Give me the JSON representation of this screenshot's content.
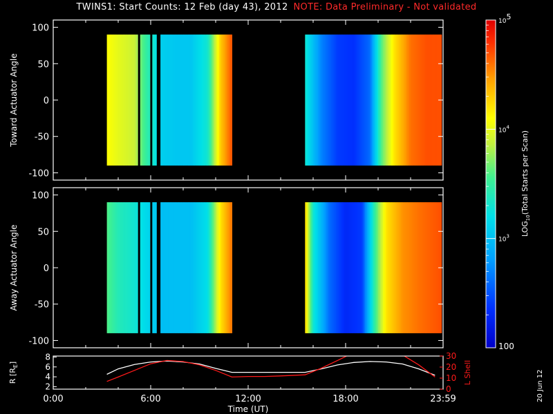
{
  "title": "TWINS1: Start Counts: 12 Feb (day  43), 2012",
  "note": "NOTE: Data Preliminary - Not validated",
  "date_stamp": "20 Jun 12",
  "colors": {
    "background": "#000000",
    "axes": "#ffffff",
    "note": "#ff2a2a",
    "r_line": "#ffffff",
    "lshell_line": "#ff1a1a"
  },
  "chart_data": [
    {
      "type": "heatmap",
      "name": "toward",
      "ylabel": "Toward Actuator Angle",
      "ylim": [
        -110,
        110
      ],
      "yticks": [
        100,
        50,
        0,
        -50,
        -100
      ],
      "xlim": [
        0,
        24
      ],
      "angle_range": [
        -90,
        90
      ],
      "data_blocks": [
        [
          3.3,
          5.2
        ],
        [
          5.35,
          5.95
        ],
        [
          6.1,
          6.35
        ],
        [
          6.6,
          11.0
        ],
        [
          15.5,
          23.9
        ]
      ],
      "colormap": "rainbow (log scale)",
      "time_profile_log10": [
        [
          3.3,
          4.1
        ],
        [
          4.0,
          4.0
        ],
        [
          5.0,
          3.9
        ],
        [
          5.5,
          3.6
        ],
        [
          6.6,
          3.1
        ],
        [
          7.5,
          3.05
        ],
        [
          8.5,
          3.05
        ],
        [
          9.5,
          3.3
        ],
        [
          10.3,
          4.3
        ],
        [
          11.0,
          4.7
        ],
        [
          15.5,
          3.3
        ],
        [
          16.5,
          2.7
        ],
        [
          17.5,
          2.4
        ],
        [
          18.5,
          2.35
        ],
        [
          19.5,
          2.6
        ],
        [
          20.2,
          3.6
        ],
        [
          21.0,
          4.2
        ],
        [
          22.0,
          4.6
        ],
        [
          23.0,
          4.7
        ],
        [
          23.9,
          4.7
        ]
      ]
    },
    {
      "type": "heatmap",
      "name": "away",
      "ylabel": "Away Actuator Angle",
      "ylim": [
        -110,
        110
      ],
      "yticks": [
        100,
        50,
        0,
        -50,
        -100
      ],
      "xlim": [
        0,
        24
      ],
      "angle_range": [
        -90,
        90
      ],
      "data_blocks": [
        [
          3.3,
          5.2
        ],
        [
          5.35,
          5.95
        ],
        [
          6.1,
          6.35
        ],
        [
          6.6,
          11.0
        ],
        [
          15.5,
          23.9
        ]
      ],
      "colormap": "rainbow (log scale)",
      "time_profile_log10": [
        [
          3.3,
          3.6
        ],
        [
          4.0,
          3.4
        ],
        [
          5.0,
          3.3
        ],
        [
          5.5,
          3.2
        ],
        [
          6.6,
          3.0
        ],
        [
          7.5,
          3.0
        ],
        [
          8.5,
          3.0
        ],
        [
          9.5,
          3.2
        ],
        [
          10.3,
          4.2
        ],
        [
          11.0,
          4.6
        ],
        [
          15.5,
          4.3
        ],
        [
          16.0,
          3.3
        ],
        [
          17.0,
          2.6
        ],
        [
          18.0,
          2.3
        ],
        [
          19.0,
          2.4
        ],
        [
          19.8,
          3.5
        ],
        [
          20.5,
          4.2
        ],
        [
          21.5,
          4.5
        ],
        [
          22.5,
          4.6
        ],
        [
          23.9,
          4.7
        ]
      ]
    },
    {
      "type": "line",
      "name": "ephemeris",
      "ylabel_left": "R [R",
      "ylabel_left_sub": "E",
      "ylabel_left_close": "]",
      "ylabel_right": "L Shell",
      "xlabel": "Time (UT)",
      "xlim": [
        0,
        24
      ],
      "xticks": [
        0,
        6,
        12,
        18,
        24
      ],
      "xtick_labels": [
        "0:00",
        "6:00",
        "12:00",
        "18:00",
        "23:59"
      ],
      "ylim_left": [
        1.5,
        8.2
      ],
      "yticks_left": [
        2,
        4,
        6,
        8
      ],
      "ylim_right": [
        0,
        30
      ],
      "yticks_right": [
        0,
        10,
        20,
        30
      ],
      "series": [
        {
          "axis": "left",
          "color": "#ffffff",
          "x": [
            3.3,
            4.0,
            5.0,
            6.0,
            7.0,
            8.0,
            9.0,
            10.0,
            11.0,
            12.0,
            13.0,
            14.0,
            15.5,
            16.5,
            17.5,
            18.5,
            19.5,
            20.5,
            21.5,
            22.5,
            23.5
          ],
          "y": [
            4.5,
            5.6,
            6.5,
            7.0,
            7.2,
            7.0,
            6.6,
            5.7,
            4.9,
            4.9,
            4.9,
            4.9,
            4.9,
            5.6,
            6.4,
            6.9,
            7.1,
            7.0,
            6.6,
            5.6,
            4.3
          ]
        },
        {
          "axis": "right",
          "color": "#ff1a1a",
          "x": [
            3.3,
            4.0,
            5.0,
            6.0,
            7.0,
            8.0,
            9.0,
            10.0,
            11.0,
            12.0,
            13.0,
            14.0,
            15.5,
            16.5,
            17.5,
            18.2,
            20.0,
            21.5,
            22.5,
            23.5
          ],
          "y": [
            7,
            11,
            17,
            23,
            26,
            25,
            22,
            17,
            11,
            11.5,
            11.5,
            12,
            13,
            19,
            26,
            31,
            31,
            31,
            22,
            11
          ]
        }
      ]
    },
    {
      "type": "colorbar",
      "scale": "log",
      "label_prefix": "LOG",
      "label_sub": "10",
      "label_rest": "(Total Starts per Scan)",
      "range": [
        100,
        100000
      ],
      "tick_values": [
        100,
        1000,
        10000,
        100000
      ],
      "tick_base": "10",
      "tick_exps": [
        "",
        "3",
        "4",
        "5"
      ],
      "bottom_label": "100"
    }
  ]
}
